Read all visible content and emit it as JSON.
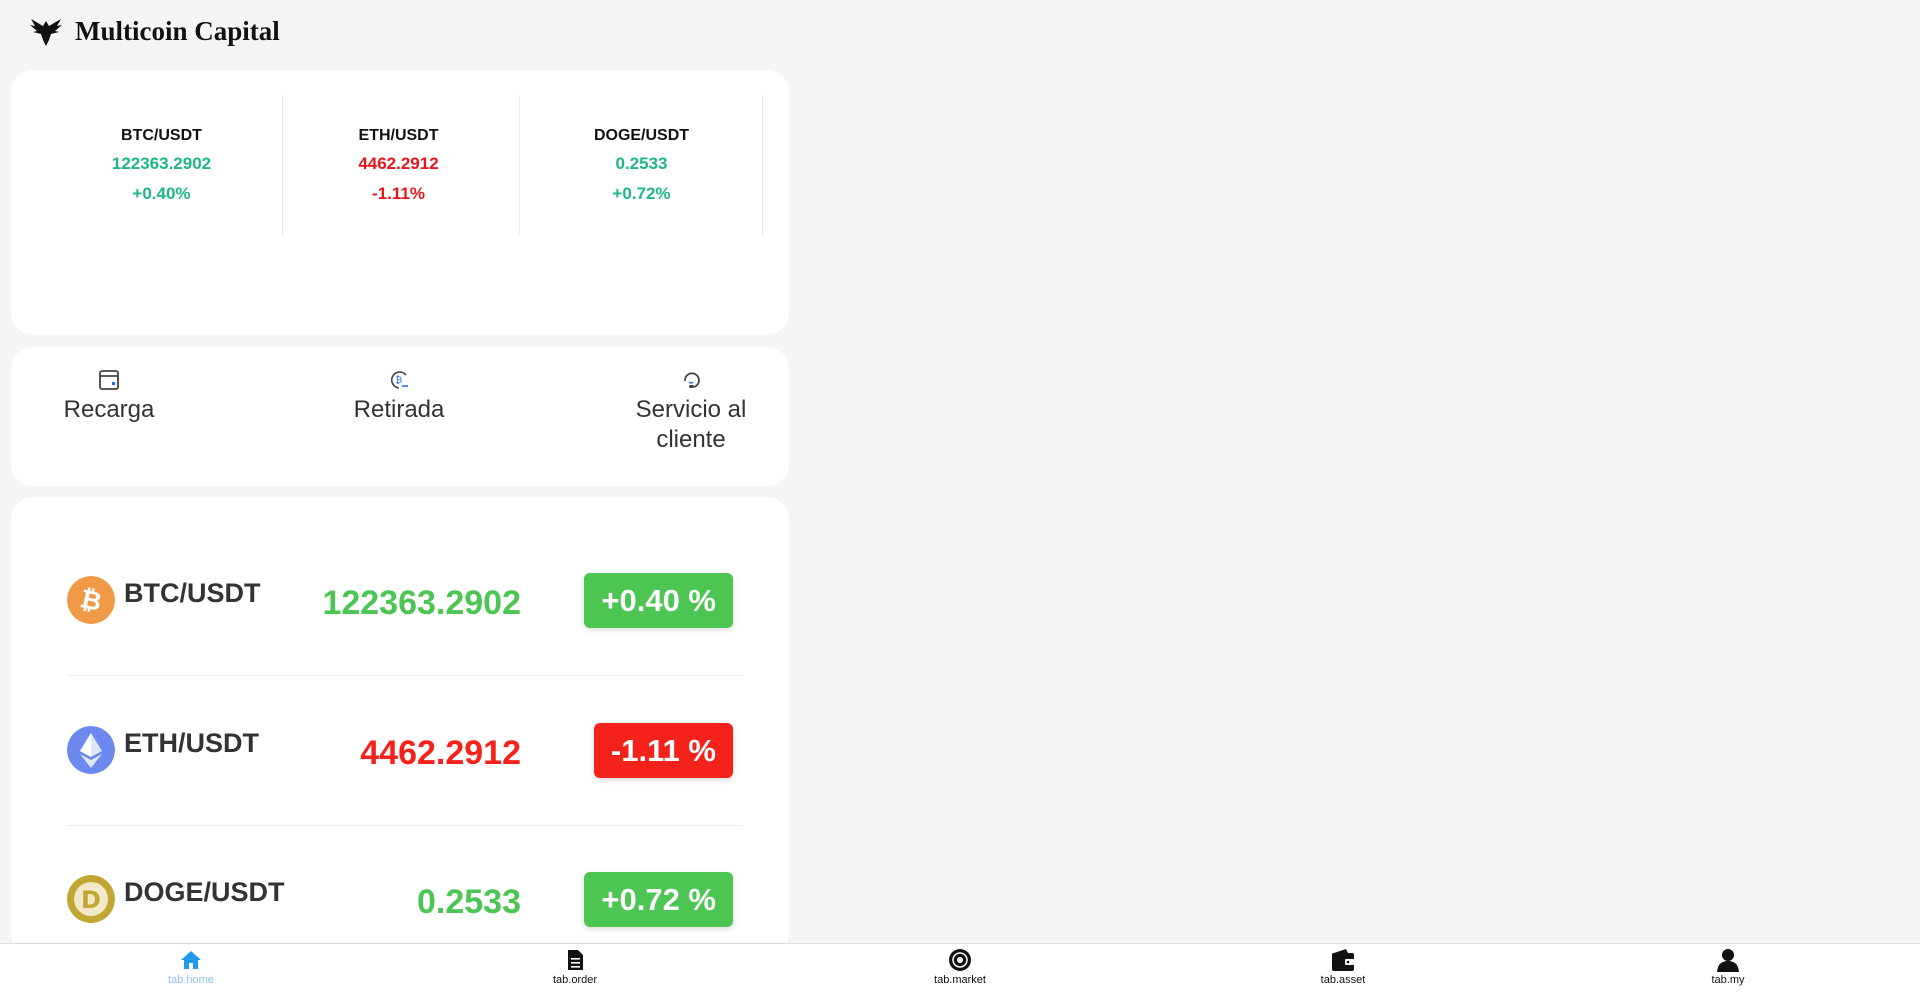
{
  "brand": {
    "name": "Multicoin Capital"
  },
  "colors": {
    "up": "#1fb58a",
    "down": "#e8141a",
    "badge_up": "#4cc552",
    "badge_down": "#f5221b",
    "row_up": "#4cc552",
    "row_down": "#f5221b",
    "tab_active": "#1e9be9"
  },
  "ticker": [
    {
      "pair": "BTC/USDT",
      "price": "122363.2902",
      "change": "+0.40%",
      "dir": "up"
    },
    {
      "pair": "ETH/USDT",
      "price": "4462.2912",
      "change": "-1.11%",
      "dir": "down"
    },
    {
      "pair": "DOGE/USDT",
      "price": "0.2533",
      "change": "+0.72%",
      "dir": "up"
    }
  ],
  "actions": [
    {
      "label": "Recarga",
      "icon": "wallet-card-icon"
    },
    {
      "label": "Retirada",
      "icon": "bitcoin-withdraw-icon"
    },
    {
      "label": "Servicio al cliente",
      "icon": "headset-icon"
    }
  ],
  "markets": [
    {
      "pair": "BTC/USDT",
      "price": "122363.2902",
      "change": "+0.40 %",
      "dir": "up",
      "icon": "bitcoin-icon"
    },
    {
      "pair": "ETH/USDT",
      "price": "4462.2912",
      "change": "-1.11 %",
      "dir": "down",
      "icon": "ethereum-icon"
    },
    {
      "pair": "DOGE/USDT",
      "price": "0.2533",
      "change": "+0.72 %",
      "dir": "up",
      "icon": "dogecoin-icon"
    }
  ],
  "tabs": [
    {
      "label": "tab.home",
      "icon": "home-icon",
      "active": true
    },
    {
      "label": "tab.order",
      "icon": "document-icon"
    },
    {
      "label": "tab.market",
      "icon": "market-icon"
    },
    {
      "label": "tab.asset",
      "icon": "wallet-icon"
    },
    {
      "label": "tab.my",
      "icon": "user-icon"
    }
  ]
}
